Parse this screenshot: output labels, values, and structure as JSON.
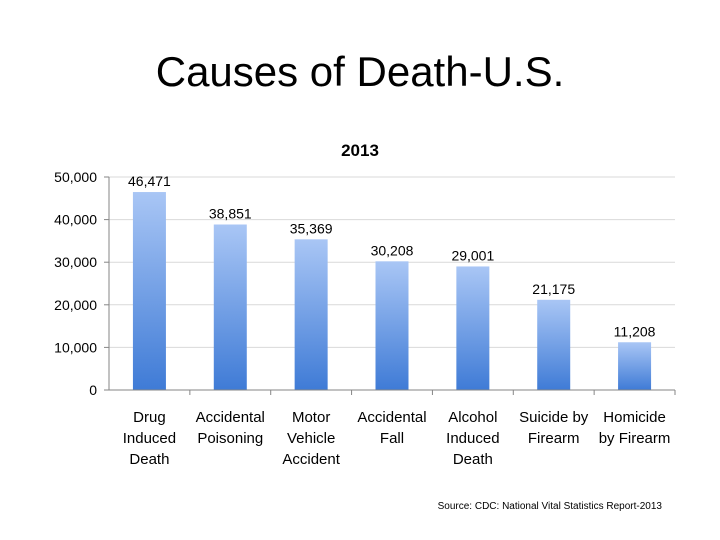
{
  "slide": {
    "title": "Causes of Death-U.S."
  },
  "source": "Source: CDC: National Vital Statistics Report-2013",
  "colors": {
    "bar_top": "#a9c6f5",
    "bar_bottom": "#3f7bd6",
    "axis": "#868686",
    "grid": "#d9d9d9"
  },
  "chart_data": {
    "type": "bar",
    "title": "2013",
    "xlabel": "",
    "ylabel": "",
    "ylim": [
      0,
      50000
    ],
    "yticks": [
      0,
      10000,
      20000,
      30000,
      40000,
      50000
    ],
    "ytick_labels": [
      "0",
      "10,000",
      "20,000",
      "30,000",
      "40,000",
      "50,000"
    ],
    "grid": true,
    "categories": [
      [
        "Drug",
        "Induced",
        "Death"
      ],
      [
        "Accidental",
        "Poisoning"
      ],
      [
        "Motor",
        "Vehicle",
        "Accident"
      ],
      [
        "Accidental",
        "Fall"
      ],
      [
        "Alcohol",
        "Induced",
        "Death"
      ],
      [
        "Suicide by",
        "Firearm"
      ],
      [
        "Homicide",
        "by Firearm"
      ]
    ],
    "values": [
      46471,
      38851,
      35369,
      30208,
      29001,
      21175,
      11208
    ],
    "data_labels": [
      "46,471",
      "38,851",
      "35,369",
      "30,208",
      "29,001",
      "21,175",
      "11,208"
    ]
  }
}
